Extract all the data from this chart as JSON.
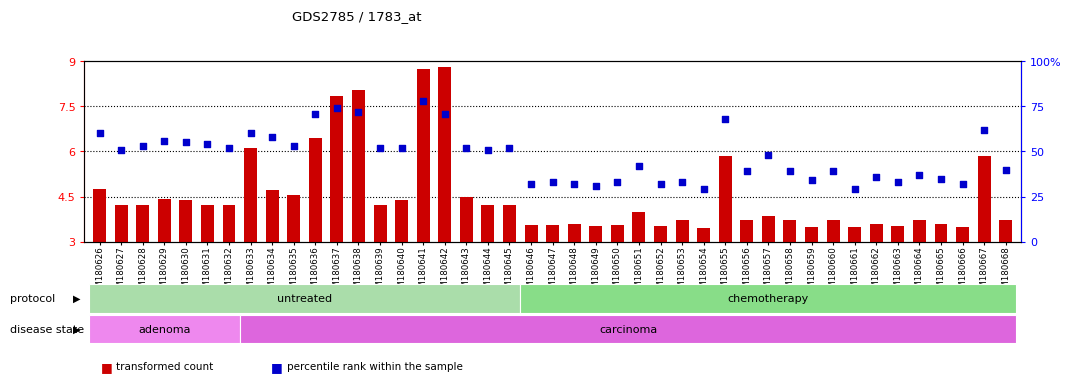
{
  "title": "GDS2785 / 1783_at",
  "samples": [
    "GSM180626",
    "GSM180627",
    "GSM180628",
    "GSM180629",
    "GSM180630",
    "GSM180631",
    "GSM180632",
    "GSM180633",
    "GSM180634",
    "GSM180635",
    "GSM180636",
    "GSM180637",
    "GSM180638",
    "GSM180639",
    "GSM180640",
    "GSM180641",
    "GSM180642",
    "GSM180643",
    "GSM180644",
    "GSM180645",
    "GSM180646",
    "GSM180647",
    "GSM180648",
    "GSM180649",
    "GSM180650",
    "GSM180651",
    "GSM180652",
    "GSM180653",
    "GSM180654",
    "GSM180655",
    "GSM180656",
    "GSM180657",
    "GSM180658",
    "GSM180659",
    "GSM180660",
    "GSM180661",
    "GSM180662",
    "GSM180663",
    "GSM180664",
    "GSM180665",
    "GSM180666",
    "GSM180667",
    "GSM180668"
  ],
  "bar_values": [
    4.75,
    4.22,
    4.22,
    4.42,
    4.37,
    4.22,
    4.22,
    6.1,
    4.72,
    4.55,
    6.45,
    7.85,
    8.05,
    4.22,
    4.37,
    8.75,
    8.82,
    4.47,
    4.22,
    4.22,
    3.55,
    3.55,
    3.6,
    3.52,
    3.55,
    4.0,
    3.52,
    3.72,
    3.45,
    5.85,
    3.72,
    3.85,
    3.72,
    3.48,
    3.72,
    3.48,
    3.6,
    3.52,
    3.72,
    3.6,
    3.48,
    5.85,
    3.72
  ],
  "dot_values": [
    60,
    51,
    53,
    56,
    55,
    54,
    52,
    60,
    58,
    53,
    71,
    74,
    72,
    52,
    52,
    78,
    71,
    52,
    51,
    52,
    32,
    33,
    32,
    31,
    33,
    42,
    32,
    33,
    29,
    68,
    39,
    48,
    39,
    34,
    39,
    29,
    36,
    33,
    37,
    35,
    32,
    62,
    40
  ],
  "ylim_left": [
    3,
    9
  ],
  "ylim_right": [
    0,
    100
  ],
  "left_yticks": [
    3,
    4.5,
    6.0,
    7.5,
    9
  ],
  "left_yticklabels": [
    "3",
    "4.5",
    "6",
    "7.5",
    "9"
  ],
  "right_yticks": [
    0,
    25,
    50,
    75,
    100
  ],
  "right_yticklabels": [
    "0",
    "25",
    "50",
    "75",
    "100%"
  ],
  "dotted_lines": [
    4.5,
    6.0,
    7.5
  ],
  "bar_color": "#cc0000",
  "dot_color": "#0000cc",
  "bar_bottom": 3,
  "protocol_groups": [
    {
      "label": "untreated",
      "start": 0,
      "end": 19,
      "color": "#aaddaa"
    },
    {
      "label": "chemotherapy",
      "start": 20,
      "end": 42,
      "color": "#88dd88"
    }
  ],
  "disease_groups": [
    {
      "label": "adenoma",
      "start": 0,
      "end": 6,
      "color": "#ee88ee"
    },
    {
      "label": "carcinoma",
      "start": 7,
      "end": 42,
      "color": "#dd66dd"
    }
  ],
  "protocol_label": "protocol",
  "disease_label": "disease state",
  "legend_items": [
    {
      "label": "transformed count",
      "color": "#cc0000"
    },
    {
      "label": "percentile rank within the sample",
      "color": "#0000cc"
    }
  ]
}
